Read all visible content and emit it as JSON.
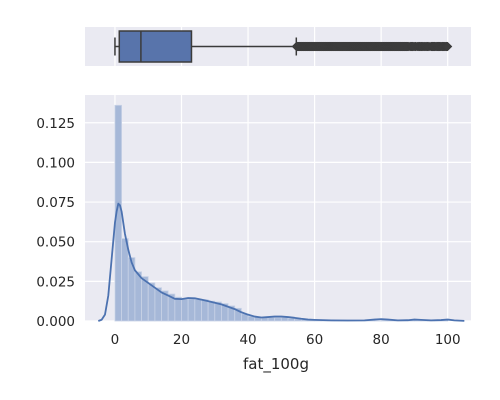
{
  "chart_data": [
    {
      "type": "box",
      "orientation": "horizontal",
      "title": "",
      "q1": 1.3,
      "median": 7.8,
      "q3": 23.0,
      "whisker_low": 0.0,
      "whisker_high": 54.5,
      "outlier_range": [
        54.5,
        100
      ],
      "xlim": [
        -9,
        107
      ],
      "grid": true,
      "colors": {
        "box_fill": "#5874ab",
        "line": "#3b3b3b",
        "plot_bg": "#eaeaf2",
        "grid": "#ffffff"
      }
    },
    {
      "type": "histogram",
      "title": "",
      "xlabel": "fat_100g",
      "ylabel": "",
      "xlim": [
        -9,
        107
      ],
      "ylim": [
        0,
        0.1425
      ],
      "x_ticks": [
        0,
        20,
        40,
        60,
        80,
        100
      ],
      "y_ticks": [
        0.0,
        0.025,
        0.05,
        0.075,
        0.1,
        0.125
      ],
      "x_tick_labels": [
        "0",
        "20",
        "40",
        "60",
        "80",
        "100"
      ],
      "y_tick_labels": [
        "0.000",
        "0.025",
        "0.050",
        "0.075",
        "0.100",
        "0.125"
      ],
      "bin_width": 2,
      "bins_start": 0,
      "bin_density": [
        0.136,
        0.052,
        0.04,
        0.031,
        0.028,
        0.024,
        0.021,
        0.019,
        0.017,
        0.015,
        0.014,
        0.014,
        0.0135,
        0.0135,
        0.0125,
        0.012,
        0.011,
        0.0095,
        0.008,
        0.0045,
        0.003,
        0.0025,
        0.0022,
        0.0021,
        0.002,
        0.0022,
        0.0018,
        0.0014,
        0.001,
        0.0008,
        0.0006,
        0.0005,
        0.0004,
        0.0003,
        0.0003,
        0.0003,
        0.0002,
        0.0002,
        0.0001,
        0.0001,
        0.0007,
        0.0002,
        0.0003,
        0.0002,
        0.0001,
        0.0005,
        0.0002,
        0.0001,
        0.0001,
        0.0004
      ],
      "kde": {
        "x": [
          -5,
          -4,
          -3,
          -2,
          -1,
          0,
          0.5,
          1,
          1.5,
          2,
          3,
          4,
          5,
          6,
          8,
          10,
          12,
          14,
          16,
          18,
          20,
          22,
          24,
          26,
          28,
          30,
          32,
          34,
          36,
          38,
          40,
          42,
          44,
          46,
          48,
          50,
          52,
          54,
          56,
          58,
          60,
          65,
          70,
          75,
          78,
          80,
          82,
          85,
          88,
          90,
          92,
          95,
          98,
          100,
          102,
          105
        ],
        "y": [
          0.0,
          0.0008,
          0.004,
          0.016,
          0.039,
          0.062,
          0.069,
          0.074,
          0.073,
          0.069,
          0.055,
          0.045,
          0.037,
          0.032,
          0.027,
          0.024,
          0.021,
          0.018,
          0.016,
          0.014,
          0.0138,
          0.0145,
          0.0143,
          0.0135,
          0.0125,
          0.0115,
          0.0105,
          0.009,
          0.0075,
          0.0055,
          0.004,
          0.0028,
          0.0022,
          0.0025,
          0.0028,
          0.0028,
          0.0025,
          0.002,
          0.0014,
          0.0009,
          0.0007,
          0.0004,
          0.0003,
          0.0004,
          0.0009,
          0.0012,
          0.0009,
          0.0004,
          0.0005,
          0.0009,
          0.0007,
          0.0004,
          0.0006,
          0.0009,
          0.0004,
          0.0001
        ]
      },
      "grid": true,
      "colors": {
        "bar_fill": "#a6b8d8",
        "bar_edge": "#c8d2e6",
        "line": "#4c72b0",
        "plot_bg": "#eaeaf2",
        "grid": "#ffffff"
      }
    }
  ]
}
